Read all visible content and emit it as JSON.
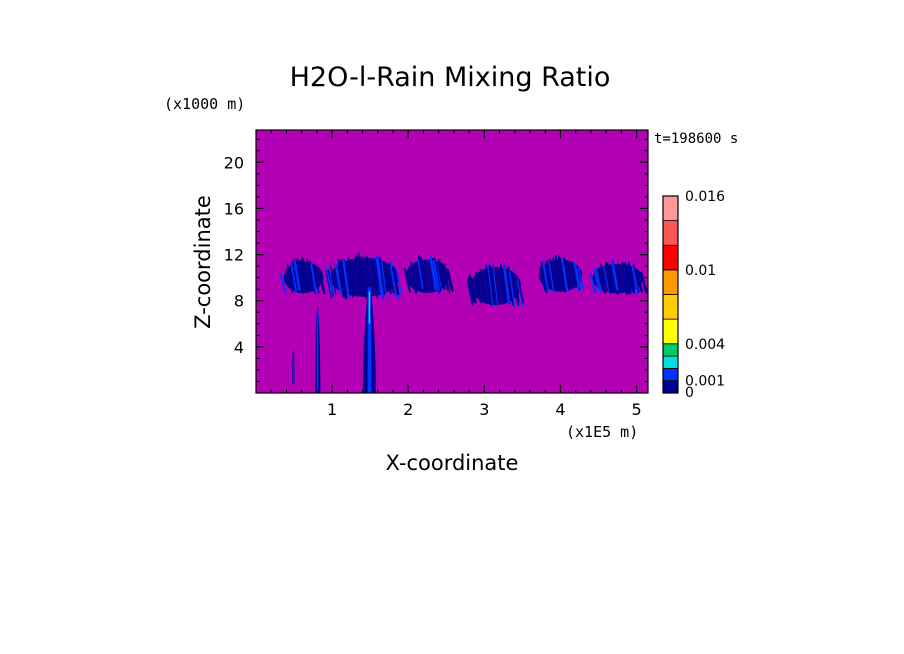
{
  "chart_data": {
    "type": "heatmap",
    "title": "H2O-l-Rain Mixing Ratio",
    "xlabel": "X-coordinate",
    "ylabel": "Z-coordinate",
    "x_unit": "(x1E5 m)",
    "y_unit": "(x1000 m)",
    "time_label": "t=198600 s",
    "xlim": [
      0,
      5.15
    ],
    "ylim": [
      0,
      22.8
    ],
    "x_ticks": [
      1,
      2,
      3,
      4,
      5
    ],
    "y_ticks": [
      4,
      8,
      12,
      16,
      20
    ],
    "colorbar": {
      "levels": [
        0,
        0.001,
        0.002,
        0.003,
        0.004,
        0.006,
        0.008,
        0.01,
        0.012,
        0.014,
        0.016
      ],
      "colors": [
        "#000090",
        "#0033ff",
        "#00e0e0",
        "#00cc66",
        "#ffff00",
        "#ffcc00",
        "#ff9900",
        "#ff0000",
        "#ff5555",
        "#ff9999",
        "#ffcccc"
      ],
      "tick_values": [
        0,
        0.001,
        0.004,
        0.01,
        0.016
      ],
      "tick_labels": [
        "0",
        "0.001",
        "0.004",
        "0.01",
        "0.016"
      ]
    },
    "background_color": "#b400b4",
    "features": [
      {
        "kind": "band",
        "x0": 0.35,
        "x1": 0.9,
        "z0": 8.6,
        "z1": 11.8
      },
      {
        "kind": "band",
        "x0": 0.95,
        "x1": 1.9,
        "z0": 8.2,
        "z1": 12.2
      },
      {
        "kind": "band",
        "x0": 1.95,
        "x1": 2.55,
        "z0": 8.6,
        "z1": 12.0
      },
      {
        "kind": "band",
        "x0": 2.8,
        "x1": 3.5,
        "z0": 7.5,
        "z1": 11.4
      },
      {
        "kind": "band",
        "x0": 3.7,
        "x1": 4.3,
        "z0": 8.7,
        "z1": 12.0
      },
      {
        "kind": "band",
        "x0": 4.4,
        "x1": 5.1,
        "z0": 8.6,
        "z1": 11.6
      },
      {
        "kind": "column",
        "x": 0.49,
        "width": 0.03,
        "z0": 0.8,
        "z1": 3.7
      },
      {
        "kind": "column",
        "x": 0.81,
        "width": 0.07,
        "z0": 0,
        "z1": 7.6
      },
      {
        "kind": "column",
        "x": 1.49,
        "width": 0.17,
        "z0": 0,
        "z1": 9.5
      }
    ]
  }
}
